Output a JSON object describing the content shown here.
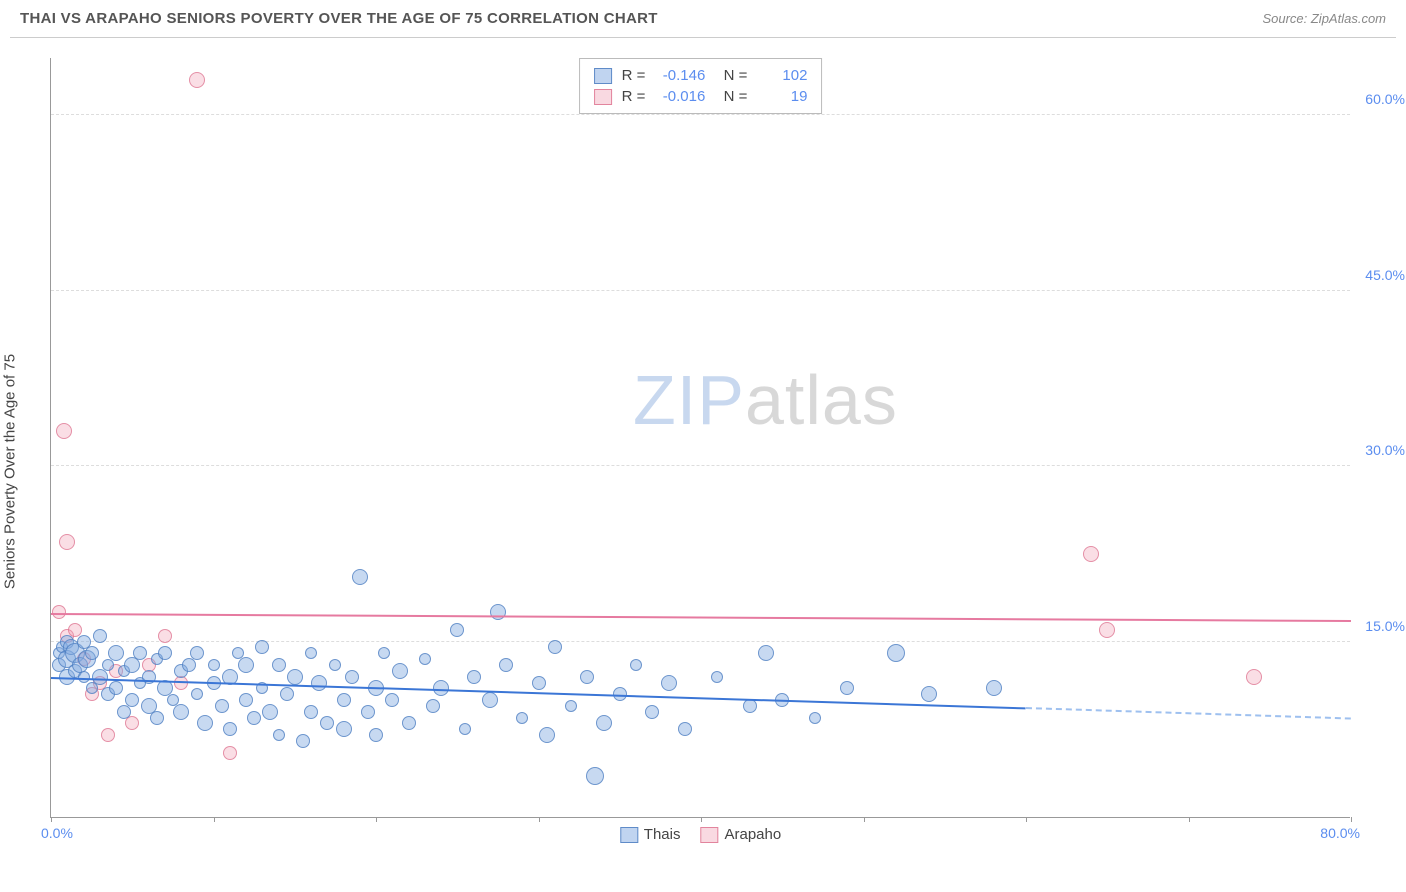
{
  "header": {
    "title": "THAI VS ARAPAHO SENIORS POVERTY OVER THE AGE OF 75 CORRELATION CHART",
    "source": "Source: ZipAtlas.com"
  },
  "chart": {
    "type": "scatter",
    "ylabel": "Seniors Poverty Over the Age of 75",
    "xlim": [
      0,
      80
    ],
    "ylim": [
      0,
      65
    ],
    "yticks": [
      15,
      30,
      45,
      60
    ],
    "ytick_labels": [
      "15.0%",
      "30.0%",
      "45.0%",
      "60.0%"
    ],
    "xticks": [
      0,
      10,
      20,
      30,
      40,
      50,
      60,
      70,
      80
    ],
    "xtick_label_left": "0.0%",
    "xtick_label_right": "80.0%",
    "background_color": "#ffffff",
    "grid_color": "#dddddd",
    "series": {
      "thai": {
        "label": "Thais",
        "color_fill": "rgba(130,170,225,0.45)",
        "color_stroke": "rgba(70,120,190,0.7)",
        "trend_color": "#3b76d6",
        "R": "-0.146",
        "N": "102",
        "trend": {
          "x1": 0,
          "y1": 11.8,
          "x2": 60,
          "y2": 9.2,
          "x2_ext": 80,
          "y2_ext": 8.3
        },
        "points": [
          {
            "x": 0.5,
            "y": 14,
            "r": 6
          },
          {
            "x": 0.5,
            "y": 13,
            "r": 7
          },
          {
            "x": 0.7,
            "y": 14.5,
            "r": 6
          },
          {
            "x": 1,
            "y": 12,
            "r": 8
          },
          {
            "x": 1,
            "y": 15,
            "r": 7
          },
          {
            "x": 1,
            "y": 13.5,
            "r": 9
          },
          {
            "x": 1.2,
            "y": 14.5,
            "r": 8
          },
          {
            "x": 1.5,
            "y": 12.5,
            "r": 7
          },
          {
            "x": 1.5,
            "y": 14,
            "r": 10
          },
          {
            "x": 1.8,
            "y": 13,
            "r": 8
          },
          {
            "x": 2,
            "y": 15,
            "r": 7
          },
          {
            "x": 2,
            "y": 12,
            "r": 6
          },
          {
            "x": 2.2,
            "y": 13.5,
            "r": 9
          },
          {
            "x": 2.5,
            "y": 14,
            "r": 7
          },
          {
            "x": 2.5,
            "y": 11,
            "r": 6
          },
          {
            "x": 3,
            "y": 12,
            "r": 8
          },
          {
            "x": 3,
            "y": 15.5,
            "r": 7
          },
          {
            "x": 3.5,
            "y": 13,
            "r": 6
          },
          {
            "x": 3.5,
            "y": 10.5,
            "r": 7
          },
          {
            "x": 4,
            "y": 14,
            "r": 8
          },
          {
            "x": 4,
            "y": 11,
            "r": 7
          },
          {
            "x": 4.5,
            "y": 12.5,
            "r": 6
          },
          {
            "x": 4.5,
            "y": 9,
            "r": 7
          },
          {
            "x": 5,
            "y": 13,
            "r": 8
          },
          {
            "x": 5,
            "y": 10,
            "r": 7
          },
          {
            "x": 5.5,
            "y": 11.5,
            "r": 6
          },
          {
            "x": 5.5,
            "y": 14,
            "r": 7
          },
          {
            "x": 6,
            "y": 9.5,
            "r": 8
          },
          {
            "x": 6,
            "y": 12,
            "r": 7
          },
          {
            "x": 6.5,
            "y": 13.5,
            "r": 6
          },
          {
            "x": 6.5,
            "y": 8.5,
            "r": 7
          },
          {
            "x": 7,
            "y": 11,
            "r": 8
          },
          {
            "x": 7,
            "y": 14,
            "r": 7
          },
          {
            "x": 7.5,
            "y": 10,
            "r": 6
          },
          {
            "x": 8,
            "y": 12.5,
            "r": 7
          },
          {
            "x": 8,
            "y": 9,
            "r": 8
          },
          {
            "x": 8.5,
            "y": 13,
            "r": 7
          },
          {
            "x": 9,
            "y": 10.5,
            "r": 6
          },
          {
            "x": 9,
            "y": 14,
            "r": 7
          },
          {
            "x": 9.5,
            "y": 8,
            "r": 8
          },
          {
            "x": 10,
            "y": 11.5,
            "r": 7
          },
          {
            "x": 10,
            "y": 13,
            "r": 6
          },
          {
            "x": 10.5,
            "y": 9.5,
            "r": 7
          },
          {
            "x": 11,
            "y": 12,
            "r": 8
          },
          {
            "x": 11,
            "y": 7.5,
            "r": 7
          },
          {
            "x": 11.5,
            "y": 14,
            "r": 6
          },
          {
            "x": 12,
            "y": 10,
            "r": 7
          },
          {
            "x": 12,
            "y": 13,
            "r": 8
          },
          {
            "x": 12.5,
            "y": 8.5,
            "r": 7
          },
          {
            "x": 13,
            "y": 11,
            "r": 6
          },
          {
            "x": 13,
            "y": 14.5,
            "r": 7
          },
          {
            "x": 13.5,
            "y": 9,
            "r": 8
          },
          {
            "x": 14,
            "y": 13,
            "r": 7
          },
          {
            "x": 14,
            "y": 7,
            "r": 6
          },
          {
            "x": 14.5,
            "y": 10.5,
            "r": 7
          },
          {
            "x": 15,
            "y": 12,
            "r": 8
          },
          {
            "x": 15.5,
            "y": 6.5,
            "r": 7
          },
          {
            "x": 16,
            "y": 14,
            "r": 6
          },
          {
            "x": 16,
            "y": 9,
            "r": 7
          },
          {
            "x": 16.5,
            "y": 11.5,
            "r": 8
          },
          {
            "x": 17,
            "y": 8,
            "r": 7
          },
          {
            "x": 17.5,
            "y": 13,
            "r": 6
          },
          {
            "x": 18,
            "y": 10,
            "r": 7
          },
          {
            "x": 18,
            "y": 7.5,
            "r": 8
          },
          {
            "x": 18.5,
            "y": 12,
            "r": 7
          },
          {
            "x": 19,
            "y": 20.5,
            "r": 8
          },
          {
            "x": 19.5,
            "y": 9,
            "r": 7
          },
          {
            "x": 20,
            "y": 11,
            "r": 8
          },
          {
            "x": 20,
            "y": 7,
            "r": 7
          },
          {
            "x": 20.5,
            "y": 14,
            "r": 6
          },
          {
            "x": 21,
            "y": 10,
            "r": 7
          },
          {
            "x": 21.5,
            "y": 12.5,
            "r": 8
          },
          {
            "x": 22,
            "y": 8,
            "r": 7
          },
          {
            "x": 23,
            "y": 13.5,
            "r": 6
          },
          {
            "x": 23.5,
            "y": 9.5,
            "r": 7
          },
          {
            "x": 24,
            "y": 11,
            "r": 8
          },
          {
            "x": 25,
            "y": 16,
            "r": 7
          },
          {
            "x": 25.5,
            "y": 7.5,
            "r": 6
          },
          {
            "x": 26,
            "y": 12,
            "r": 7
          },
          {
            "x": 27,
            "y": 10,
            "r": 8
          },
          {
            "x": 27.5,
            "y": 17.5,
            "r": 8
          },
          {
            "x": 28,
            "y": 13,
            "r": 7
          },
          {
            "x": 29,
            "y": 8.5,
            "r": 6
          },
          {
            "x": 30,
            "y": 11.5,
            "r": 7
          },
          {
            "x": 30.5,
            "y": 7,
            "r": 8
          },
          {
            "x": 31,
            "y": 14.5,
            "r": 7
          },
          {
            "x": 32,
            "y": 9.5,
            "r": 6
          },
          {
            "x": 33,
            "y": 12,
            "r": 7
          },
          {
            "x": 33.5,
            "y": 3.5,
            "r": 9
          },
          {
            "x": 34,
            "y": 8,
            "r": 8
          },
          {
            "x": 35,
            "y": 10.5,
            "r": 7
          },
          {
            "x": 36,
            "y": 13,
            "r": 6
          },
          {
            "x": 37,
            "y": 9,
            "r": 7
          },
          {
            "x": 38,
            "y": 11.5,
            "r": 8
          },
          {
            "x": 39,
            "y": 7.5,
            "r": 7
          },
          {
            "x": 41,
            "y": 12,
            "r": 6
          },
          {
            "x": 43,
            "y": 9.5,
            "r": 7
          },
          {
            "x": 44,
            "y": 14,
            "r": 8
          },
          {
            "x": 45,
            "y": 10,
            "r": 7
          },
          {
            "x": 47,
            "y": 8.5,
            "r": 6
          },
          {
            "x": 49,
            "y": 11,
            "r": 7
          },
          {
            "x": 52,
            "y": 14,
            "r": 9
          },
          {
            "x": 54,
            "y": 10.5,
            "r": 8
          },
          {
            "x": 58,
            "y": 11,
            "r": 8
          }
        ]
      },
      "arapaho": {
        "label": "Arapaho",
        "color_fill": "rgba(240,160,180,0.35)",
        "color_stroke": "rgba(220,110,140,0.7)",
        "trend_color": "#e67aa0",
        "R": "-0.016",
        "N": "19",
        "trend": {
          "x1": 0,
          "y1": 17.3,
          "x2": 80,
          "y2": 16.7
        },
        "points": [
          {
            "x": 0.8,
            "y": 33,
            "r": 8
          },
          {
            "x": 1,
            "y": 23.5,
            "r": 8
          },
          {
            "x": 0.5,
            "y": 17.5,
            "r": 7
          },
          {
            "x": 1,
            "y": 15.5,
            "r": 7
          },
          {
            "x": 1.5,
            "y": 16,
            "r": 7
          },
          {
            "x": 2,
            "y": 13.5,
            "r": 7
          },
          {
            "x": 2.5,
            "y": 10.5,
            "r": 7
          },
          {
            "x": 3,
            "y": 11.5,
            "r": 7
          },
          {
            "x": 3.5,
            "y": 7,
            "r": 7
          },
          {
            "x": 4,
            "y": 12.5,
            "r": 7
          },
          {
            "x": 5,
            "y": 8,
            "r": 7
          },
          {
            "x": 6,
            "y": 13,
            "r": 7
          },
          {
            "x": 7,
            "y": 15.5,
            "r": 7
          },
          {
            "x": 8,
            "y": 11.5,
            "r": 7
          },
          {
            "x": 9,
            "y": 63,
            "r": 8
          },
          {
            "x": 11,
            "y": 5.5,
            "r": 7
          },
          {
            "x": 64,
            "y": 22.5,
            "r": 8
          },
          {
            "x": 65,
            "y": 16,
            "r": 8
          },
          {
            "x": 74,
            "y": 12,
            "r": 8
          }
        ]
      }
    },
    "watermark": {
      "part1": "ZIP",
      "part2": "atlas"
    }
  }
}
